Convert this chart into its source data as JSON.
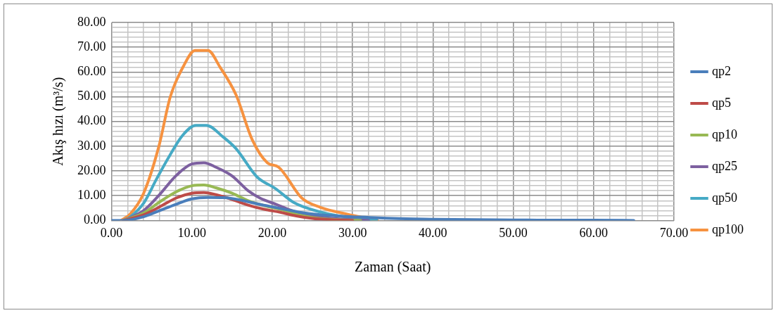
{
  "chart_data": {
    "type": "line",
    "xlabel": "Zaman (Saat)",
    "ylabel": "Akış hızı (m³/s)",
    "xlim": [
      0,
      70
    ],
    "ylim": [
      0,
      80
    ],
    "xticks": [
      {
        "value": 0,
        "label": "0.00"
      },
      {
        "value": 2,
        "label": null
      },
      {
        "value": 4,
        "label": null
      },
      {
        "value": 6,
        "label": null
      },
      {
        "value": 8,
        "label": null
      },
      {
        "value": 10,
        "label": "10.00"
      },
      {
        "value": 12,
        "label": null
      },
      {
        "value": 14,
        "label": null
      },
      {
        "value": 16,
        "label": null
      },
      {
        "value": 18,
        "label": null
      },
      {
        "value": 20,
        "label": "20.00"
      },
      {
        "value": 22,
        "label": null
      },
      {
        "value": 24,
        "label": null
      },
      {
        "value": 26,
        "label": null
      },
      {
        "value": 28,
        "label": null
      },
      {
        "value": 30,
        "label": "30.00"
      },
      {
        "value": 32,
        "label": null
      },
      {
        "value": 34,
        "label": null
      },
      {
        "value": 36,
        "label": null
      },
      {
        "value": 38,
        "label": null
      },
      {
        "value": 40,
        "label": "40.00"
      },
      {
        "value": 42,
        "label": null
      },
      {
        "value": 44,
        "label": null
      },
      {
        "value": 46,
        "label": null
      },
      {
        "value": 48,
        "label": null
      },
      {
        "value": 50,
        "label": "50.00"
      },
      {
        "value": 52,
        "label": null
      },
      {
        "value": 54,
        "label": null
      },
      {
        "value": 56,
        "label": null
      },
      {
        "value": 58,
        "label": null
      },
      {
        "value": 60,
        "label": "60.00"
      },
      {
        "value": 62,
        "label": null
      },
      {
        "value": 64,
        "label": null
      },
      {
        "value": 66,
        "label": null
      },
      {
        "value": 68,
        "label": null
      },
      {
        "value": 70,
        "label": "70.00"
      }
    ],
    "yticks": [
      {
        "value": 0,
        "label": "0.00"
      },
      {
        "value": 2,
        "label": null
      },
      {
        "value": 4,
        "label": null
      },
      {
        "value": 6,
        "label": null
      },
      {
        "value": 8,
        "label": null
      },
      {
        "value": 10,
        "label": "10.00"
      },
      {
        "value": 12,
        "label": null
      },
      {
        "value": 14,
        "label": null
      },
      {
        "value": 16,
        "label": null
      },
      {
        "value": 18,
        "label": null
      },
      {
        "value": 20,
        "label": "20.00"
      },
      {
        "value": 22,
        "label": null
      },
      {
        "value": 24,
        "label": null
      },
      {
        "value": 26,
        "label": null
      },
      {
        "value": 28,
        "label": null
      },
      {
        "value": 30,
        "label": "30.00"
      },
      {
        "value": 32,
        "label": null
      },
      {
        "value": 34,
        "label": null
      },
      {
        "value": 36,
        "label": null
      },
      {
        "value": 38,
        "label": null
      },
      {
        "value": 40,
        "label": "40.00"
      },
      {
        "value": 42,
        "label": null
      },
      {
        "value": 44,
        "label": null
      },
      {
        "value": 46,
        "label": null
      },
      {
        "value": 48,
        "label": null
      },
      {
        "value": 50,
        "label": "50.00"
      },
      {
        "value": 52,
        "label": null
      },
      {
        "value": 54,
        "label": null
      },
      {
        "value": 56,
        "label": null
      },
      {
        "value": 58,
        "label": null
      },
      {
        "value": 60,
        "label": "60.00"
      },
      {
        "value": 62,
        "label": null
      },
      {
        "value": 64,
        "label": null
      },
      {
        "value": 66,
        "label": null
      },
      {
        "value": 68,
        "label": null
      },
      {
        "value": 70,
        "label": "70.00"
      },
      {
        "value": 72,
        "label": null
      },
      {
        "value": 74,
        "label": null
      },
      {
        "value": 76,
        "label": null
      },
      {
        "value": 78,
        "label": null
      },
      {
        "value": 80,
        "label": "80.00"
      }
    ],
    "grid": true,
    "legend": "right",
    "marker": "none",
    "line_style": "solid",
    "series": [
      {
        "name": "qp2",
        "color": "#4a7ebb",
        "x": [
          0,
          1.5,
          4,
          6,
          8,
          10,
          12,
          14,
          16,
          18,
          20,
          22,
          24,
          27,
          30,
          35,
          40,
          45,
          50,
          55,
          60,
          65
        ],
        "values": [
          0,
          0,
          1.5,
          4,
          6.5,
          8.7,
          9.3,
          9.2,
          8.3,
          6.8,
          5.5,
          4.2,
          3,
          2,
          1.5,
          0.8,
          0.5,
          0.3,
          0.2,
          0.1,
          0.1,
          0
        ]
      },
      {
        "name": "qp5",
        "color": "#be4b48",
        "x": [
          1.5,
          4,
          6,
          8,
          10,
          11.5,
          13,
          15,
          17,
          19,
          21,
          23,
          25,
          28,
          30
        ],
        "values": [
          0,
          2.3,
          5.5,
          9,
          11,
          11.3,
          10.4,
          8.5,
          6.2,
          4.5,
          3.3,
          1.8,
          0.8,
          0.2,
          0
        ]
      },
      {
        "name": "qp10",
        "color": "#98b954",
        "x": [
          1.5,
          4,
          6,
          8,
          10,
          11.5,
          13,
          15,
          17,
          19,
          21,
          23,
          25,
          28,
          31
        ],
        "values": [
          0,
          3,
          7.5,
          11.5,
          14,
          14.3,
          13.2,
          11,
          8,
          6,
          4.5,
          2.5,
          1.2,
          0.3,
          0
        ]
      },
      {
        "name": "qp25",
        "color": "#7d60a0",
        "x": [
          1.5,
          4,
          6,
          8,
          10,
          11.5,
          13,
          15,
          17,
          18.5,
          20.5,
          22,
          24,
          27,
          30,
          32
        ],
        "values": [
          0,
          4,
          10.5,
          18,
          22.8,
          23.3,
          21.5,
          18,
          12,
          9,
          6.5,
          4.5,
          2.5,
          1,
          0.3,
          0
        ]
      },
      {
        "name": "qp50",
        "color": "#46aac5",
        "x": [
          1.5,
          2.3,
          4,
          5.6,
          7.2,
          8.9,
          10.5,
          11.8,
          13.9,
          15.5,
          18.1,
          20.4,
          22.7,
          26,
          30,
          33
        ],
        "values": [
          0,
          1.4,
          7,
          16.7,
          26,
          34.6,
          38.4,
          38.4,
          33.7,
          29,
          17.6,
          12.9,
          7.2,
          3.4,
          1,
          0.2
        ]
      },
      {
        "name": "qp100",
        "color": "#f69240",
        "x": [
          1.2,
          2.3,
          4,
          5.9,
          7.3,
          8.9,
          10.4,
          12,
          13.5,
          15.5,
          17.5,
          19.4,
          20.8,
          23.7,
          26,
          29.4,
          33.1
        ],
        "values": [
          0,
          2.5,
          11,
          30,
          49.8,
          62,
          68.7,
          68.7,
          62,
          50.7,
          32.7,
          23.3,
          21.5,
          9,
          5.3,
          2.5,
          0
        ]
      }
    ]
  }
}
